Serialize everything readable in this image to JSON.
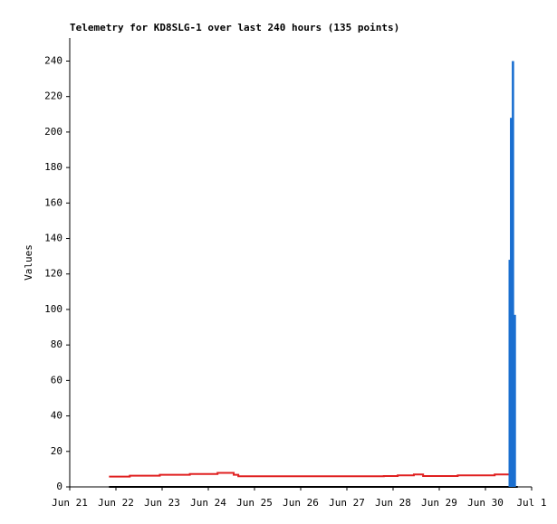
{
  "chart_data": {
    "type": "line",
    "title": "Telemetry for KD8SLG-1 over last 240 hours (135 points)",
    "y_label": "Values",
    "xlim": [
      0,
      10
    ],
    "ylim": [
      0,
      253
    ],
    "xticks": [
      {
        "value": 0,
        "label": "Jun 21"
      },
      {
        "value": 1,
        "label": "Jun 22"
      },
      {
        "value": 2,
        "label": "Jun 23"
      },
      {
        "value": 3,
        "label": "Jun 24"
      },
      {
        "value": 4,
        "label": "Jun 25"
      },
      {
        "value": 5,
        "label": "Jun 26"
      },
      {
        "value": 6,
        "label": "Jun 27"
      },
      {
        "value": 7,
        "label": "Jun 28"
      },
      {
        "value": 8,
        "label": "Jun 29"
      },
      {
        "value": 9,
        "label": "Jun 30"
      },
      {
        "value": 10,
        "label": "Jul 1"
      }
    ],
    "yticks": [
      0,
      20,
      40,
      60,
      80,
      100,
      120,
      140,
      160,
      180,
      200,
      220,
      240
    ],
    "series": [
      {
        "kind": "line",
        "color": "#000000",
        "x": [
          0.85,
          9.7
        ],
        "values": [
          0,
          0
        ]
      },
      {
        "kind": "line",
        "color": "#e02020",
        "x": [
          0.85,
          1.3,
          1.3,
          1.95,
          1.95,
          2.6,
          2.6,
          3.2,
          3.2,
          3.55,
          3.55,
          3.65,
          3.65,
          6.8,
          6.8,
          7.1,
          7.1,
          7.45,
          7.45,
          7.65,
          7.65,
          8.4,
          8.4,
          9.2,
          9.2,
          9.65
        ],
        "values": [
          5.8,
          5.8,
          6.3,
          6.3,
          6.8,
          6.8,
          7.3,
          7.3,
          7.9,
          7.9,
          6.8,
          6.8,
          6,
          6,
          6.1,
          6.1,
          6.5,
          6.5,
          7,
          7,
          6.1,
          6.1,
          6.5,
          6.5,
          7,
          7
        ]
      },
      {
        "kind": "bar",
        "color": "#1a6fd0",
        "x": [
          9.5,
          9.53,
          9.57,
          9.61
        ],
        "values": [
          128,
          208,
          240,
          97
        ]
      }
    ]
  }
}
